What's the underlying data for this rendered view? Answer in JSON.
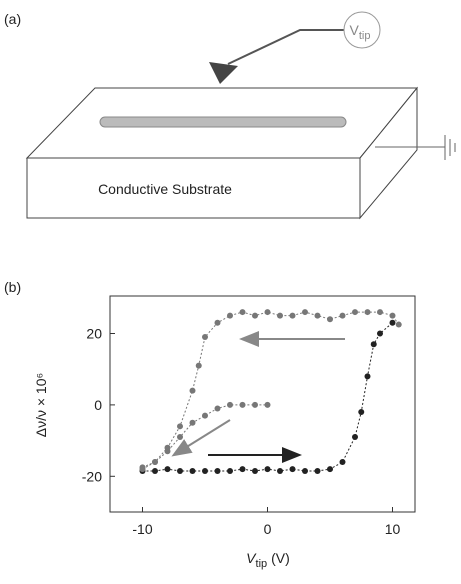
{
  "panel_a": {
    "label": "(a)",
    "tip_label": "V",
    "tip_subscript": "tip",
    "substrate_label": "Conductive Substrate"
  },
  "panel_b": {
    "label": "(b)"
  },
  "chart_data": {
    "type": "line",
    "ylabel": "Δν/ν × 10⁶",
    "xlabel": {
      "symbol": "V",
      "subscript": "tip",
      "unit": "(V)"
    },
    "xlim": [
      -12.6,
      11.8
    ],
    "ylim": [
      -30,
      30.5
    ],
    "xticks": [
      -10,
      0,
      10
    ],
    "yticks": [
      -20,
      0,
      20
    ],
    "series": [
      {
        "color": "#222222",
        "x": [
          -10,
          -9,
          -8,
          -7,
          -6,
          -5,
          -4,
          -3,
          -2,
          -1,
          0,
          1,
          2,
          3,
          4,
          5,
          6,
          7,
          7.5,
          8,
          8.5,
          9,
          10
        ],
        "values": [
          -18.5,
          -18.5,
          -18,
          -18.5,
          -18.5,
          -18.5,
          -18.5,
          -18.5,
          -18,
          -18.5,
          -18,
          -18.5,
          -18,
          -18.5,
          -18.5,
          -18,
          -16,
          -9,
          -2,
          8,
          17,
          20,
          23
        ]
      },
      {
        "color": "#777777",
        "x": [
          10.5,
          10,
          9,
          8,
          7,
          6,
          5,
          4,
          3,
          2,
          1,
          0,
          -1,
          -2,
          -3,
          -4,
          -5,
          -5.5,
          -6,
          -7,
          -8,
          -9,
          -10
        ],
        "values": [
          22.5,
          25,
          26,
          26,
          26,
          25,
          24,
          25,
          26,
          25,
          25,
          26,
          25,
          26,
          25,
          23,
          19,
          11,
          4,
          -6,
          -12,
          -16,
          -17.5
        ]
      },
      {
        "color": "#777777",
        "x": [
          -10,
          -9,
          -8,
          -7,
          -6,
          -5,
          -4,
          -3,
          -2,
          -1,
          0
        ],
        "values": [
          -18,
          -16,
          -13,
          -9,
          -5,
          -3,
          -1,
          0,
          0,
          0,
          0
        ]
      }
    ]
  }
}
